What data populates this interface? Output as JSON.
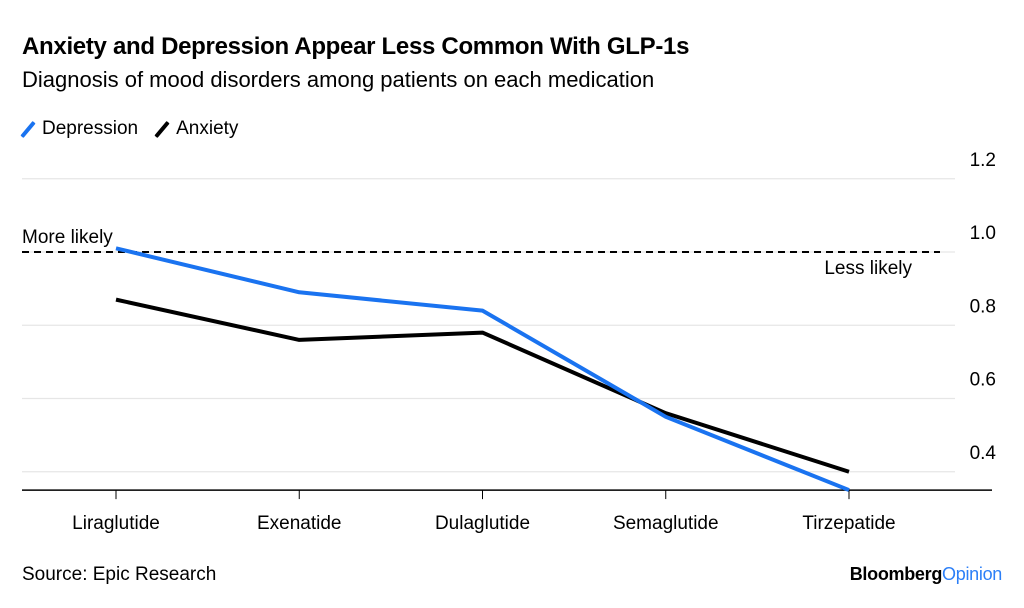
{
  "header": {
    "title": "Anxiety and Depression Appear Less Common With GLP-1s",
    "subtitle": "Diagnosis of mood disorders among patients on each medication"
  },
  "footer": {
    "source": "Source: Epic Research",
    "brand_primary": "Bloomberg",
    "brand_secondary": "Opinion"
  },
  "chart_data": {
    "type": "line",
    "title": "Anxiety and Depression Appear Less Common With GLP-1s",
    "subtitle": "Diagnosis of mood disorders among patients on each medication",
    "xlabel": "",
    "ylabel": "",
    "categories": [
      "Liraglutide",
      "Exenatide",
      "Dulaglutide",
      "Semaglutide",
      "Tirzepatide"
    ],
    "series": [
      {
        "name": "Depression",
        "color": "#1a73f0",
        "values": [
          1.01,
          0.89,
          0.84,
          0.55,
          0.35
        ]
      },
      {
        "name": "Anxiety",
        "color": "#000000",
        "values": [
          0.87,
          0.76,
          0.78,
          0.56,
          0.4
        ]
      }
    ],
    "ylim": [
      0.35,
      1.2
    ],
    "yticks": [
      0.4,
      0.6,
      0.8,
      1.0,
      1.2
    ],
    "ytick_labels": [
      "0.4",
      "0.6",
      "0.8",
      "1.0",
      "1.2"
    ],
    "y_axis_side": "right",
    "grid": true,
    "legend_position": "top-left",
    "reference_line": {
      "value": 1.0,
      "style": "dashed"
    },
    "annotations": [
      {
        "text": "More likely",
        "position": "above reference line, left"
      },
      {
        "text": "Less likely",
        "position": "below reference line, right"
      }
    ]
  }
}
